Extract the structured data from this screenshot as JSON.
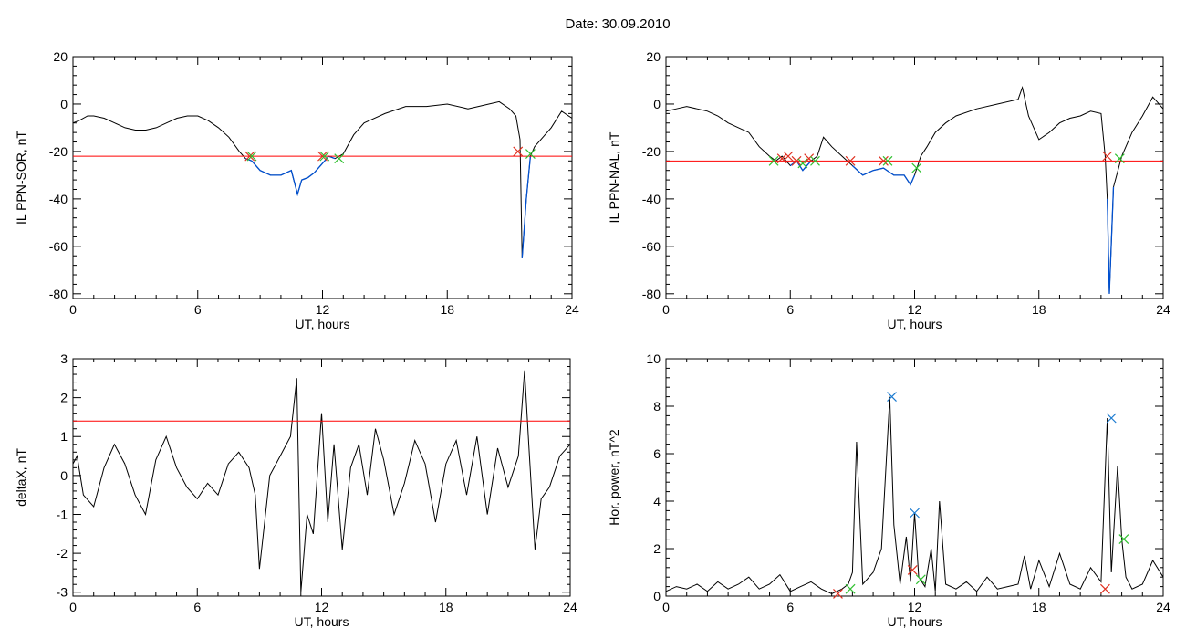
{
  "figure": {
    "title": "Date:  30.09.2010"
  },
  "colors": {
    "trace": "#000000",
    "threshold": "#ff0000",
    "below": "#0050d0",
    "marker_red": "#e03020",
    "marker_green": "#30c030",
    "marker_blue": "#1a7ad0"
  },
  "chart_data": [
    {
      "id": "top-left",
      "type": "line",
      "ylabel": "IL PPN-SOR, nT",
      "xlabel": "UT, hours",
      "xlim": [
        0,
        24
      ],
      "ylim": [
        -82,
        20
      ],
      "xticks": [
        0,
        6,
        12,
        18,
        24
      ],
      "yticks": [
        -80,
        -60,
        -40,
        -20,
        0,
        20
      ],
      "threshold": -22,
      "x": [
        0,
        0.3,
        0.7,
        1,
        1.5,
        2,
        2.5,
        3,
        3.5,
        4,
        4.5,
        5,
        5.5,
        6,
        6.5,
        7,
        7.5,
        8,
        8.3,
        8.6,
        9,
        9.5,
        10,
        10.5,
        10.8,
        11,
        11.3,
        11.6,
        12,
        12.3,
        12.6,
        13,
        13.5,
        14,
        15,
        16,
        17,
        18,
        19,
        19.5,
        20,
        20.5,
        21,
        21.3,
        21.5,
        21.6,
        21.8,
        22,
        22.2,
        22.5,
        23,
        23.5,
        24
      ],
      "values": [
        -8,
        -7,
        -5,
        -5,
        -6,
        -8,
        -10,
        -11,
        -11,
        -10,
        -8,
        -6,
        -5,
        -5,
        -7,
        -10,
        -14,
        -20,
        -23,
        -24,
        -28,
        -30,
        -30,
        -28,
        -38,
        -32,
        -31,
        -29,
        -25,
        -22,
        -23,
        -21,
        -13,
        -8,
        -4,
        -1,
        -1,
        0,
        -2,
        -1,
        0,
        1,
        -2,
        -5,
        -15,
        -65,
        -40,
        -22,
        -18,
        -15,
        -10,
        -3,
        -6
      ],
      "markers": [
        {
          "x": 8.5,
          "y": -22,
          "color": "marker_red"
        },
        {
          "x": 8.6,
          "y": -22,
          "color": "marker_green"
        },
        {
          "x": 12.0,
          "y": -22,
          "color": "marker_red"
        },
        {
          "x": 12.1,
          "y": -22,
          "color": "marker_green"
        },
        {
          "x": 12.8,
          "y": -23,
          "color": "marker_green"
        },
        {
          "x": 21.4,
          "y": -20,
          "color": "marker_red"
        },
        {
          "x": 22.0,
          "y": -21,
          "color": "marker_green"
        }
      ]
    },
    {
      "id": "top-right",
      "type": "line",
      "ylabel": "IL PPN-NAL, nT",
      "xlabel": "UT, hours",
      "xlim": [
        0,
        24
      ],
      "ylim": [
        -82,
        20
      ],
      "xticks": [
        0,
        6,
        12,
        18,
        24
      ],
      "yticks": [
        -80,
        -60,
        -40,
        -20,
        0,
        20
      ],
      "threshold": -24,
      "x": [
        0,
        0.5,
        1,
        1.5,
        2,
        2.5,
        3,
        3.5,
        4,
        4.5,
        5,
        5.3,
        5.6,
        6,
        6.3,
        6.6,
        7,
        7.3,
        7.6,
        8,
        8.5,
        9,
        9.5,
        10,
        10.5,
        11,
        11.5,
        11.8,
        12,
        12.3,
        12.6,
        13,
        13.5,
        14,
        15,
        16,
        17,
        17.2,
        17.5,
        18,
        18.5,
        19,
        19.5,
        20,
        20.5,
        21,
        21.2,
        21.3,
        21.4,
        21.6,
        22,
        22.5,
        23,
        23.5,
        24
      ],
      "values": [
        -3,
        -2,
        -1,
        -2,
        -3,
        -5,
        -8,
        -10,
        -12,
        -18,
        -22,
        -24,
        -22,
        -26,
        -24,
        -28,
        -24,
        -22,
        -14,
        -18,
        -22,
        -26,
        -30,
        -28,
        -27,
        -30,
        -30,
        -34,
        -30,
        -22,
        -18,
        -12,
        -8,
        -5,
        -2,
        0,
        2,
        7,
        -5,
        -15,
        -12,
        -8,
        -6,
        -5,
        -3,
        -4,
        -22,
        -40,
        -80,
        -35,
        -22,
        -12,
        -5,
        3,
        -2
      ],
      "markers": [
        {
          "x": 5.2,
          "y": -24,
          "color": "marker_green"
        },
        {
          "x": 5.6,
          "y": -23,
          "color": "marker_red"
        },
        {
          "x": 5.9,
          "y": -22,
          "color": "marker_red"
        },
        {
          "x": 6.3,
          "y": -24,
          "color": "marker_red"
        },
        {
          "x": 6.6,
          "y": -25,
          "color": "marker_green"
        },
        {
          "x": 6.9,
          "y": -23,
          "color": "marker_red"
        },
        {
          "x": 7.2,
          "y": -24,
          "color": "marker_green"
        },
        {
          "x": 8.9,
          "y": -24,
          "color": "marker_red"
        },
        {
          "x": 10.5,
          "y": -24,
          "color": "marker_red"
        },
        {
          "x": 10.7,
          "y": -24,
          "color": "marker_green"
        },
        {
          "x": 12.1,
          "y": -27,
          "color": "marker_green"
        },
        {
          "x": 21.3,
          "y": -22,
          "color": "marker_red"
        },
        {
          "x": 21.9,
          "y": -23,
          "color": "marker_green"
        }
      ]
    },
    {
      "id": "bottom-left",
      "type": "line",
      "ylabel": "deltaX, nT",
      "xlabel": "UT, hours",
      "xlim": [
        0,
        24
      ],
      "ylim": [
        -3.1,
        3
      ],
      "xticks": [
        0,
        6,
        12,
        18,
        24
      ],
      "yticks": [
        -3,
        -2,
        -1,
        0,
        1,
        2,
        3
      ],
      "threshold": 1.4,
      "x": [
        0,
        0.2,
        0.5,
        1,
        1.5,
        2,
        2.5,
        3,
        3.5,
        4,
        4.5,
        5,
        5.5,
        6,
        6.5,
        7,
        7.5,
        8,
        8.5,
        8.8,
        9,
        9.5,
        10,
        10.5,
        10.8,
        11,
        11.3,
        11.6,
        12,
        12.3,
        12.6,
        13,
        13.4,
        13.8,
        14.2,
        14.6,
        15,
        15.5,
        16,
        16.5,
        17,
        17.5,
        18,
        18.5,
        19,
        19.5,
        20,
        20.5,
        21,
        21.5,
        21.8,
        22,
        22.3,
        22.6,
        23,
        23.5,
        24
      ],
      "values": [
        0.3,
        0.5,
        -0.5,
        -0.8,
        0.2,
        0.8,
        0.3,
        -0.5,
        -1.0,
        0.4,
        1.0,
        0.2,
        -0.3,
        -0.6,
        -0.2,
        -0.5,
        0.3,
        0.6,
        0.2,
        -0.5,
        -2.4,
        0.0,
        0.5,
        1.0,
        2.5,
        -3.0,
        -1.0,
        -1.5,
        1.6,
        -1.2,
        0.8,
        -1.9,
        0.2,
        0.8,
        -0.5,
        1.2,
        0.4,
        -1.0,
        -0.2,
        0.9,
        0.3,
        -1.2,
        0.3,
        0.9,
        -0.5,
        1.0,
        -1.0,
        0.7,
        -0.3,
        0.5,
        2.7,
        0.8,
        -1.9,
        -0.6,
        -0.3,
        0.5,
        0.8
      ],
      "markers": []
    },
    {
      "id": "bottom-right",
      "type": "line",
      "ylabel": "Hor. power, nT^2",
      "xlabel": "UT, hours",
      "xlim": [
        0,
        24
      ],
      "ylim": [
        0,
        10
      ],
      "xticks": [
        0,
        6,
        12,
        18,
        24
      ],
      "yticks": [
        0,
        2,
        4,
        6,
        8,
        10
      ],
      "threshold": null,
      "x": [
        0,
        0.5,
        1,
        1.5,
        2,
        2.5,
        3,
        3.5,
        4,
        4.5,
        5,
        5.5,
        6,
        6.5,
        7,
        7.5,
        8,
        8.5,
        8.8,
        9,
        9.2,
        9.5,
        10,
        10.4,
        10.8,
        11,
        11.3,
        11.6,
        11.8,
        12,
        12.2,
        12.5,
        12.8,
        13,
        13.2,
        13.5,
        14,
        14.5,
        15,
        15.5,
        16,
        16.5,
        17,
        17.3,
        17.6,
        18,
        18.5,
        19,
        19.5,
        20,
        20.5,
        21,
        21.3,
        21.5,
        21.8,
        22,
        22.2,
        22.5,
        23,
        23.5,
        24
      ],
      "values": [
        0.2,
        0.4,
        0.3,
        0.5,
        0.2,
        0.6,
        0.3,
        0.5,
        0.8,
        0.3,
        0.5,
        0.9,
        0.2,
        0.4,
        0.6,
        0.3,
        0.1,
        0.3,
        0.5,
        1.0,
        6.5,
        0.5,
        1.0,
        2.0,
        8.4,
        3.0,
        0.5,
        2.5,
        0.6,
        3.5,
        0.8,
        0.4,
        2.0,
        0.2,
        4.0,
        0.5,
        0.3,
        0.6,
        0.2,
        0.8,
        0.3,
        0.4,
        0.5,
        1.7,
        0.3,
        1.5,
        0.4,
        1.8,
        0.5,
        0.3,
        1.2,
        0.6,
        7.5,
        1.0,
        5.5,
        2.4,
        0.8,
        0.3,
        0.5,
        1.5,
        0.8
      ],
      "markers": [
        {
          "x": 8.3,
          "y": 0.1,
          "color": "marker_red"
        },
        {
          "x": 8.9,
          "y": 0.3,
          "color": "marker_green"
        },
        {
          "x": 10.9,
          "y": 8.4,
          "color": "marker_blue"
        },
        {
          "x": 11.9,
          "y": 1.1,
          "color": "marker_red"
        },
        {
          "x": 12.0,
          "y": 3.5,
          "color": "marker_blue"
        },
        {
          "x": 12.3,
          "y": 0.7,
          "color": "marker_green"
        },
        {
          "x": 21.2,
          "y": 0.3,
          "color": "marker_red"
        },
        {
          "x": 21.5,
          "y": 7.5,
          "color": "marker_blue"
        },
        {
          "x": 22.1,
          "y": 2.4,
          "color": "marker_green"
        }
      ]
    }
  ]
}
